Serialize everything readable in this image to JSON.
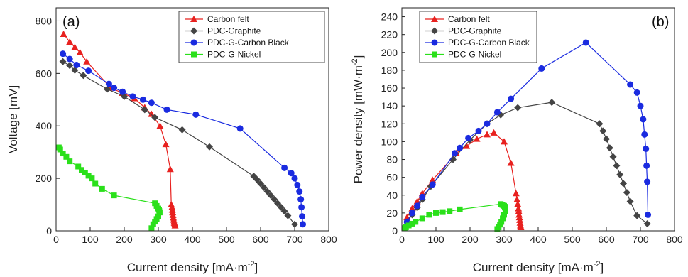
{
  "chart_data": [
    {
      "type": "line",
      "panel_label": "(a)",
      "xlabel": "Current density [mA·m",
      "xlabel_sup": "-2",
      "xlabel_end": "]",
      "ylabel": "Voltage [mV]",
      "xlim": [
        0,
        800
      ],
      "ylim": [
        0,
        850
      ],
      "xticks": [
        0,
        100,
        200,
        300,
        400,
        500,
        600,
        700,
        800
      ],
      "yticks": [
        0,
        200,
        400,
        600,
        800
      ],
      "legend_position": "top-right",
      "grid": false,
      "series": [
        {
          "name": "Carbon felt",
          "color": "#e8211f",
          "marker": "triangle",
          "x": [
            22,
            40,
            55,
            70,
            90,
            160,
            195,
            230,
            260,
            280,
            305,
            322,
            335,
            338,
            340,
            341,
            342,
            343,
            344,
            345,
            346,
            347,
            348,
            349
          ],
          "y": [
            750,
            720,
            700,
            680,
            645,
            545,
            525,
            505,
            470,
            445,
            400,
            330,
            235,
            100,
            90,
            80,
            70,
            60,
            50,
            42,
            35,
            30,
            25,
            20
          ]
        },
        {
          "name": "PDC-Graphite",
          "color": "#444444",
          "marker": "diamond",
          "x": [
            20,
            40,
            55,
            80,
            150,
            200,
            260,
            290,
            370,
            450,
            580,
            590,
            600,
            610,
            620,
            630,
            640,
            650,
            660,
            670,
            680,
            700
          ],
          "y": [
            645,
            630,
            612,
            592,
            540,
            512,
            462,
            432,
            385,
            320,
            208,
            195,
            180,
            165,
            150,
            135,
            120,
            105,
            90,
            75,
            58,
            25
          ]
        },
        {
          "name": "PDC-G-Carbon Black",
          "color": "#1a2be0",
          "marker": "circle",
          "x": [
            20,
            40,
            60,
            95,
            155,
            170,
            195,
            225,
            255,
            280,
            325,
            410,
            540,
            670,
            690,
            700,
            708,
            714,
            718,
            720,
            722,
            724
          ],
          "y": [
            675,
            655,
            632,
            610,
            560,
            545,
            530,
            512,
            500,
            488,
            462,
            443,
            390,
            240,
            220,
            200,
            175,
            150,
            120,
            90,
            55,
            25
          ]
        },
        {
          "name": "PDC-G-Nickel",
          "color": "#2ae01a",
          "marker": "square",
          "x": [
            8,
            12,
            20,
            30,
            40,
            65,
            75,
            85,
            95,
            105,
            115,
            135,
            170,
            290,
            295,
            300,
            302,
            303,
            304,
            300,
            295,
            290,
            285,
            280
          ],
          "y": [
            318,
            310,
            295,
            282,
            265,
            245,
            232,
            222,
            210,
            200,
            180,
            160,
            135,
            105,
            95,
            85,
            80,
            75,
            70,
            55,
            45,
            35,
            25,
            10
          ]
        }
      ]
    },
    {
      "type": "line",
      "panel_label": "(b)",
      "xlabel": "Current density [mA·m",
      "xlabel_sup": "-2",
      "xlabel_end": "]",
      "ylabel": "Power density [mW·m",
      "ylabel_sup": "-2",
      "ylabel_end": "]",
      "xlim": [
        0,
        800
      ],
      "ylim": [
        0,
        250
      ],
      "xticks": [
        0,
        100,
        200,
        300,
        400,
        500,
        600,
        700,
        800
      ],
      "yticks": [
        0,
        20,
        40,
        60,
        80,
        100,
        120,
        140,
        160,
        180,
        200,
        220,
        240
      ],
      "legend_position": "top-left",
      "grid": false,
      "series": [
        {
          "name": "Carbon felt",
          "color": "#e8211f",
          "marker": "triangle",
          "x": [
            15,
            30,
            45,
            60,
            90,
            160,
            190,
            220,
            250,
            270,
            300,
            320,
            335,
            338,
            340,
            342,
            343,
            344,
            345,
            346,
            347,
            348,
            349
          ],
          "y": [
            15,
            25,
            33,
            42,
            57,
            87,
            95,
            103,
            108,
            110,
            100,
            76,
            42,
            35,
            30,
            25,
            22,
            18,
            15,
            12,
            9,
            6,
            4
          ]
        },
        {
          "name": "PDC-Graphite",
          "color": "#444444",
          "marker": "diamond",
          "x": [
            15,
            30,
            45,
            60,
            85,
            150,
            200,
            250,
            290,
            340,
            440,
            580,
            590,
            600,
            610,
            620,
            630,
            640,
            650,
            660,
            670,
            690,
            720
          ],
          "y": [
            10,
            18,
            26,
            35,
            50,
            80,
            102,
            120,
            130,
            138,
            144,
            120,
            112,
            103,
            93,
            83,
            73,
            63,
            53,
            43,
            33,
            17,
            8
          ]
        },
        {
          "name": "PDC-G-Carbon Black",
          "color": "#1a2be0",
          "marker": "circle",
          "x": [
            15,
            30,
            45,
            60,
            90,
            155,
            170,
            195,
            225,
            250,
            280,
            320,
            410,
            540,
            670,
            690,
            700,
            708,
            712,
            716,
            718,
            720,
            722
          ],
          "y": [
            10,
            20,
            28,
            38,
            52,
            87,
            93,
            104,
            112,
            120,
            133,
            148,
            182,
            211,
            164,
            155,
            140,
            125,
            108,
            92,
            73,
            55,
            18
          ]
        },
        {
          "name": "PDC-G-Nickel",
          "color": "#2ae01a",
          "marker": "square",
          "x": [
            8,
            12,
            20,
            30,
            40,
            60,
            80,
            100,
            120,
            140,
            170,
            290,
            295,
            300,
            302,
            303,
            304,
            300,
            296,
            292,
            288,
            284,
            280
          ],
          "y": [
            3,
            4,
            6,
            8,
            10,
            14,
            18,
            20,
            21,
            22,
            24,
            30,
            29,
            28,
            27,
            26,
            22,
            18,
            14,
            10,
            7,
            4,
            2
          ]
        }
      ]
    }
  ]
}
